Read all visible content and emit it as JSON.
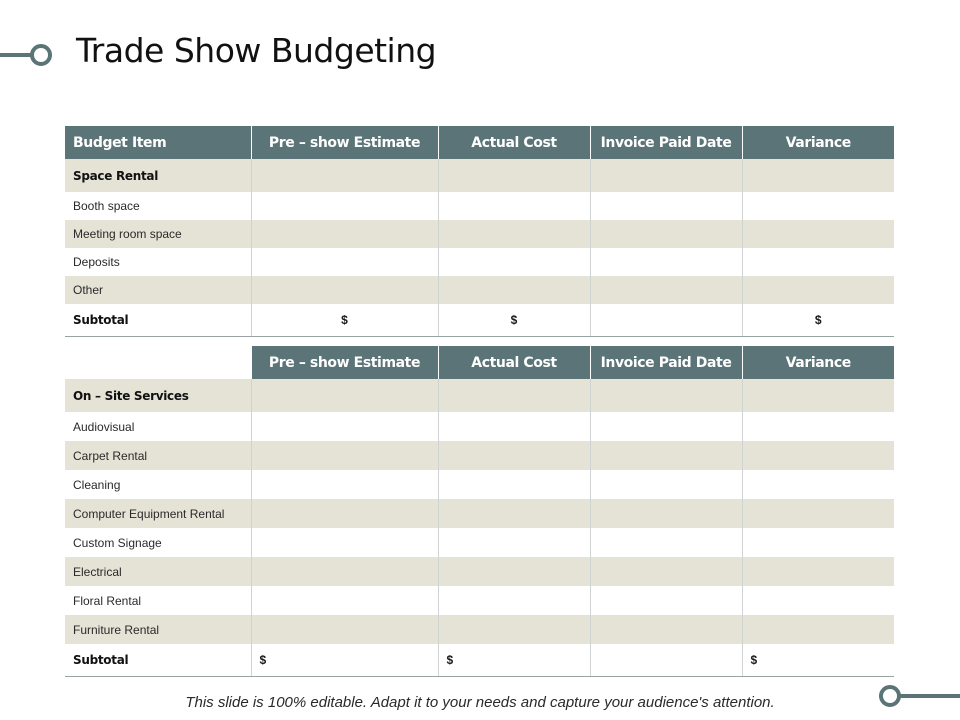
{
  "title": "Trade Show Budgeting",
  "colors": {
    "header": "#5b7478",
    "band": "#e5e2d6",
    "accent": "#5b7478"
  },
  "table1": {
    "headers": [
      "Budget Item",
      "Pre – show Estimate",
      "Actual Cost",
      "Invoice Paid Date",
      "Variance"
    ],
    "group_label": "Space Rental",
    "items": [
      "Booth space",
      "Meeting room space",
      "Deposits",
      "Other"
    ],
    "subtotal": {
      "label": "Subtotal",
      "estimate": "$",
      "actual": "$",
      "invoice": "",
      "variance": "$"
    }
  },
  "table2": {
    "headers": [
      "",
      "Pre – show Estimate",
      "Actual Cost",
      "Invoice Paid Date",
      "Variance"
    ],
    "group_label": "On – Site Services",
    "items": [
      "Audiovisual",
      "Carpet Rental",
      "Cleaning",
      "Computer Equipment Rental",
      "Custom Signage",
      "Electrical",
      "Floral Rental",
      "Furniture Rental"
    ],
    "subtotal": {
      "label": "Subtotal",
      "estimate": "$",
      "actual": "$",
      "invoice": "",
      "variance": "$"
    }
  },
  "footer": "This slide is 100% editable. Adapt it to your needs and capture your audience's attention.",
  "icons": {
    "top_left": "line-circle-icon",
    "bottom_right": "circle-line-icon"
  }
}
